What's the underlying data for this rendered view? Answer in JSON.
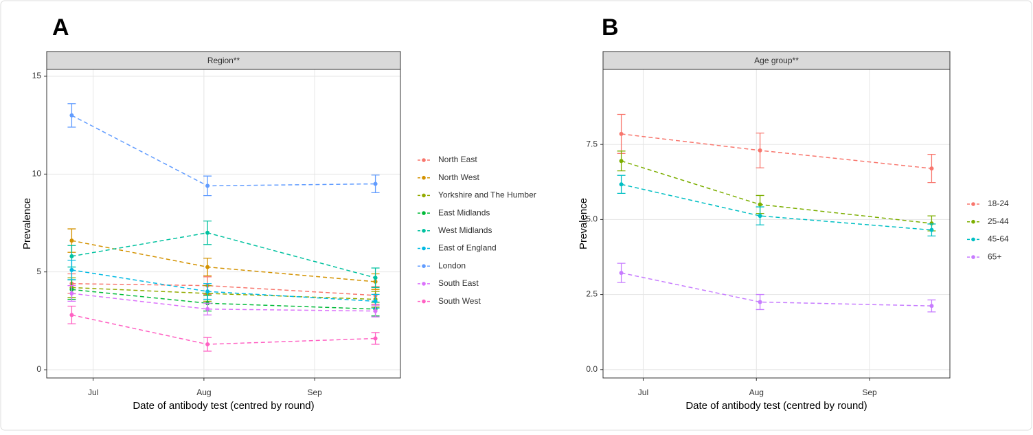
{
  "chart_data": [
    {
      "type": "line",
      "panel_label": "A",
      "title": "Region**",
      "xlabel": "Date of antibody test (centred by round)",
      "ylabel": "Prevalence",
      "x": [
        176,
        214,
        261
      ],
      "xlim": [
        169,
        268
      ],
      "xticks": [
        {
          "value": 182,
          "label": "Jul"
        },
        {
          "value": 213,
          "label": "Aug"
        },
        {
          "value": 244,
          "label": "Sep"
        }
      ],
      "ylim": [
        -0.42,
        15.35
      ],
      "yticks": [
        0,
        5,
        10,
        15
      ],
      "grid": true,
      "legend": "right",
      "linestyle": "dashed",
      "series": [
        {
          "name": "North East",
          "color": "#F8766D",
          "values": [
            4.4,
            4.3,
            3.8
          ],
          "errors": [
            0.5,
            0.45,
            0.45
          ]
        },
        {
          "name": "North West",
          "color": "#D39200",
          "values": [
            6.6,
            5.25,
            4.5
          ],
          "errors": [
            0.6,
            0.45,
            0.4
          ]
        },
        {
          "name": "Yorkshire and The Humber",
          "color": "#93AA00",
          "values": [
            4.2,
            3.9,
            3.6
          ],
          "errors": [
            0.5,
            0.4,
            0.4
          ]
        },
        {
          "name": "East Midlands",
          "color": "#00BA38",
          "values": [
            4.1,
            3.4,
            3.1
          ],
          "errors": [
            0.5,
            0.4,
            0.35
          ]
        },
        {
          "name": "West Midlands",
          "color": "#00C19F",
          "values": [
            5.8,
            7.0,
            4.7
          ],
          "errors": [
            0.55,
            0.6,
            0.5
          ]
        },
        {
          "name": "East of England",
          "color": "#00B9E3",
          "values": [
            5.1,
            4.0,
            3.5
          ],
          "errors": [
            0.5,
            0.4,
            0.35
          ]
        },
        {
          "name": "London",
          "color": "#619CFF",
          "values": [
            13.0,
            9.4,
            9.5
          ],
          "errors": [
            0.6,
            0.5,
            0.45
          ]
        },
        {
          "name": "South East",
          "color": "#DB72FB",
          "values": [
            3.9,
            3.1,
            3.0
          ],
          "errors": [
            0.4,
            0.3,
            0.3
          ]
        },
        {
          "name": "South West",
          "color": "#FF61C3",
          "values": [
            2.8,
            1.3,
            1.6
          ],
          "errors": [
            0.45,
            0.35,
            0.3
          ]
        }
      ]
    },
    {
      "type": "line",
      "panel_label": "B",
      "title": "Age group**",
      "xlabel": "Date of antibody test (centred by round)",
      "ylabel": "Prevalence",
      "x": [
        176,
        214,
        261
      ],
      "xlim": [
        171,
        266
      ],
      "xticks": [
        {
          "value": 182,
          "label": "Jul"
        },
        {
          "value": 213,
          "label": "Aug"
        },
        {
          "value": 244,
          "label": "Sep"
        }
      ],
      "ylim": [
        -0.28,
        10.0
      ],
      "yticks": [
        {
          "value": 0,
          "label": "0.0"
        },
        {
          "value": 2.5,
          "label": "2.5"
        },
        {
          "value": 5,
          "label": "5.0"
        },
        {
          "value": 7.5,
          "label": "7.5"
        }
      ],
      "grid": true,
      "legend": "right",
      "linestyle": "dashed",
      "series": [
        {
          "name": "18-24",
          "color": "#F8766D",
          "values": [
            7.85,
            7.3,
            6.7
          ],
          "errors": [
            0.65,
            0.58,
            0.47
          ]
        },
        {
          "name": "25-44",
          "color": "#7CAE00",
          "values": [
            6.95,
            5.5,
            4.87
          ],
          "errors": [
            0.33,
            0.3,
            0.25
          ]
        },
        {
          "name": "45-64",
          "color": "#00BFC4",
          "values": [
            6.17,
            5.12,
            4.65
          ],
          "errors": [
            0.3,
            0.3,
            0.2
          ]
        },
        {
          "name": "65+",
          "color": "#C77CFF",
          "values": [
            3.22,
            2.25,
            2.12
          ],
          "errors": [
            0.32,
            0.25,
            0.2
          ]
        }
      ]
    }
  ]
}
